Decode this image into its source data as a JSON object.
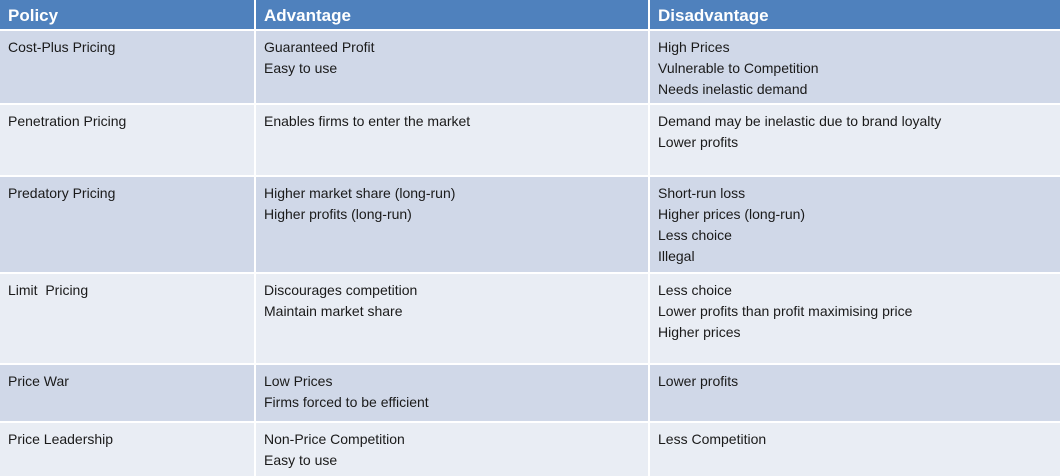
{
  "headers": {
    "policy": "Policy",
    "advantage": "Advantage",
    "disadvantage": "Disadvantage"
  },
  "rows": [
    {
      "policy": "Cost-Plus Pricing",
      "advantages": [
        "Guaranteed Profit",
        "Easy to use"
      ],
      "disadvantages": [
        "High Prices",
        "Vulnerable to Competition",
        "Needs inelastic demand"
      ]
    },
    {
      "policy": "Penetration Pricing",
      "advantages": [
        "Enables firms to enter the market"
      ],
      "disadvantages": [
        "Demand may be inelastic due to brand loyalty",
        "Lower profits"
      ]
    },
    {
      "policy": "Predatory Pricing",
      "advantages": [
        "Higher market share (long-run)",
        "Higher profits (long-run)"
      ],
      "disadvantages": [
        "Short-run loss",
        "Higher prices (long-run)",
        "Less choice",
        "Illegal"
      ]
    },
    {
      "policy": "Limit  Pricing",
      "advantages": [
        "Discourages competition",
        "Maintain market share"
      ],
      "disadvantages": [
        "Less choice",
        "Lower profits than profit maximising price",
        "Higher prices"
      ]
    },
    {
      "policy": "Price War",
      "advantages": [
        "Low Prices",
        "Firms forced to be efficient"
      ],
      "disadvantages": [
        "Lower profits"
      ]
    },
    {
      "policy": "Price Leadership",
      "advantages": [
        "Non-Price Competition",
        "Easy to use"
      ],
      "disadvantages": [
        "Less Competition"
      ]
    }
  ]
}
